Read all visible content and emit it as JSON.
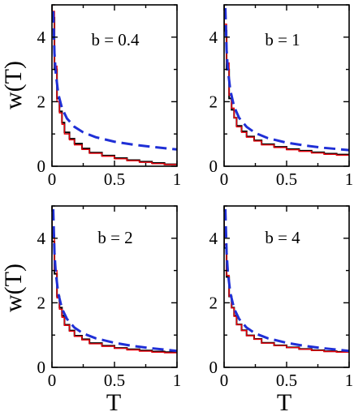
{
  "figure": {
    "ylabel": "w(T)",
    "xlabel": "T",
    "x_ticks": [
      "0",
      "0.5",
      "1"
    ],
    "y_ticks": [
      "0",
      "2",
      "4"
    ]
  },
  "chart_data": [
    {
      "type": "line",
      "annotation": "b = 0.4",
      "xlim": [
        0,
        1
      ],
      "ylim": [
        0,
        5
      ],
      "colors": {
        "histogram_black": "#000000",
        "histogram_red": "#e8000b",
        "dashed_fit": "#1f2fd6"
      },
      "series": [
        {
          "style": "black-step",
          "x": [
            0.02,
            0.04,
            0.06,
            0.08,
            0.1,
            0.14,
            0.18,
            0.24,
            0.3,
            0.4,
            0.5,
            0.6,
            0.7,
            0.8,
            0.9,
            0.98
          ],
          "values": [
            4.6,
            3.0,
            2.1,
            1.7,
            1.35,
            1.05,
            0.85,
            0.7,
            0.55,
            0.42,
            0.33,
            0.25,
            0.19,
            0.14,
            0.1,
            0.06
          ]
        },
        {
          "style": "red-step",
          "x": [
            0.02,
            0.04,
            0.06,
            0.08,
            0.1,
            0.14,
            0.18,
            0.24,
            0.3,
            0.4,
            0.5,
            0.6,
            0.7,
            0.8,
            0.9,
            0.98
          ],
          "values": [
            4.8,
            3.1,
            2.0,
            1.65,
            1.3,
            1.0,
            0.82,
            0.66,
            0.52,
            0.4,
            0.31,
            0.23,
            0.17,
            0.12,
            0.08,
            0.05
          ]
        },
        {
          "style": "blue-dashed",
          "x": [
            0.01,
            0.02,
            0.03,
            0.05,
            0.08,
            0.12,
            0.18,
            0.25,
            0.35,
            0.5,
            0.65,
            0.8,
            1.0
          ],
          "values": [
            4.8,
            3.5,
            2.9,
            2.25,
            1.8,
            1.48,
            1.22,
            1.05,
            0.9,
            0.76,
            0.67,
            0.6,
            0.52
          ]
        }
      ]
    },
    {
      "type": "line",
      "annotation": "b = 1",
      "xlim": [
        0,
        1
      ],
      "ylim": [
        0,
        5
      ],
      "colors": {
        "histogram_black": "#000000",
        "histogram_red": "#e8000b",
        "dashed_fit": "#1f2fd6"
      },
      "series": [
        {
          "style": "black-step",
          "x": [
            0.02,
            0.04,
            0.06,
            0.08,
            0.1,
            0.14,
            0.18,
            0.24,
            0.3,
            0.4,
            0.5,
            0.6,
            0.7,
            0.8,
            0.9,
            0.98
          ],
          "values": [
            4.2,
            3.0,
            2.1,
            1.75,
            1.5,
            1.25,
            1.08,
            0.92,
            0.8,
            0.68,
            0.6,
            0.53,
            0.48,
            0.43,
            0.39,
            0.36
          ]
        },
        {
          "style": "red-step",
          "x": [
            0.02,
            0.04,
            0.06,
            0.08,
            0.1,
            0.14,
            0.18,
            0.24,
            0.3,
            0.4,
            0.5,
            0.6,
            0.7,
            0.8,
            0.9,
            0.98
          ],
          "values": [
            4.4,
            3.2,
            2.2,
            1.8,
            1.5,
            1.22,
            1.05,
            0.9,
            0.78,
            0.66,
            0.58,
            0.51,
            0.46,
            0.41,
            0.37,
            0.34
          ]
        },
        {
          "style": "blue-dashed",
          "x": [
            0.01,
            0.02,
            0.03,
            0.05,
            0.08,
            0.12,
            0.18,
            0.25,
            0.35,
            0.5,
            0.65,
            0.8,
            1.0
          ],
          "values": [
            4.9,
            3.6,
            3.0,
            2.35,
            1.85,
            1.5,
            1.22,
            1.03,
            0.87,
            0.73,
            0.64,
            0.57,
            0.5
          ]
        }
      ]
    },
    {
      "type": "line",
      "annotation": "b = 2",
      "xlim": [
        0,
        1
      ],
      "ylim": [
        0,
        5
      ],
      "colors": {
        "histogram_black": "#000000",
        "histogram_red": "#e8000b",
        "dashed_fit": "#1f2fd6"
      },
      "series": [
        {
          "style": "black-step",
          "x": [
            0.02,
            0.04,
            0.06,
            0.08,
            0.1,
            0.14,
            0.18,
            0.24,
            0.3,
            0.4,
            0.5,
            0.6,
            0.7,
            0.8,
            0.9,
            0.98
          ],
          "values": [
            3.9,
            2.9,
            2.2,
            1.85,
            1.6,
            1.32,
            1.14,
            0.98,
            0.87,
            0.75,
            0.67,
            0.6,
            0.56,
            0.52,
            0.49,
            0.47
          ]
        },
        {
          "style": "red-step",
          "x": [
            0.02,
            0.04,
            0.06,
            0.08,
            0.1,
            0.14,
            0.18,
            0.24,
            0.3,
            0.4,
            0.5,
            0.6,
            0.7,
            0.8,
            0.9,
            0.98
          ],
          "values": [
            4.1,
            3.0,
            2.15,
            1.8,
            1.55,
            1.3,
            1.12,
            0.96,
            0.85,
            0.73,
            0.65,
            0.59,
            0.54,
            0.5,
            0.47,
            0.45
          ]
        },
        {
          "style": "blue-dashed",
          "x": [
            0.01,
            0.02,
            0.03,
            0.05,
            0.08,
            0.12,
            0.18,
            0.25,
            0.35,
            0.5,
            0.65,
            0.8,
            1.0
          ],
          "values": [
            4.9,
            3.55,
            2.95,
            2.3,
            1.82,
            1.5,
            1.23,
            1.05,
            0.9,
            0.76,
            0.66,
            0.59,
            0.51
          ]
        }
      ]
    },
    {
      "type": "line",
      "annotation": "b = 4",
      "xlim": [
        0,
        1
      ],
      "ylim": [
        0,
        5
      ],
      "colors": {
        "histogram_black": "#000000",
        "histogram_red": "#e8000b",
        "dashed_fit": "#1f2fd6"
      },
      "series": [
        {
          "style": "black-step",
          "x": [
            0.02,
            0.04,
            0.06,
            0.08,
            0.1,
            0.14,
            0.18,
            0.24,
            0.3,
            0.4,
            0.5,
            0.6,
            0.7,
            0.8,
            0.9,
            0.98
          ],
          "values": [
            3.7,
            2.8,
            2.2,
            1.85,
            1.6,
            1.33,
            1.15,
            0.99,
            0.88,
            0.76,
            0.68,
            0.62,
            0.57,
            0.53,
            0.5,
            0.48
          ]
        },
        {
          "style": "red-step",
          "x": [
            0.02,
            0.04,
            0.06,
            0.08,
            0.1,
            0.14,
            0.18,
            0.24,
            0.3,
            0.4,
            0.5,
            0.6,
            0.7,
            0.8,
            0.9,
            0.98
          ],
          "values": [
            3.8,
            2.85,
            2.2,
            1.84,
            1.58,
            1.32,
            1.14,
            0.98,
            0.87,
            0.75,
            0.67,
            0.61,
            0.56,
            0.52,
            0.49,
            0.47
          ]
        },
        {
          "style": "blue-dashed",
          "x": [
            0.01,
            0.02,
            0.03,
            0.05,
            0.08,
            0.12,
            0.18,
            0.25,
            0.35,
            0.5,
            0.65,
            0.8,
            1.0
          ],
          "values": [
            4.9,
            3.55,
            2.95,
            2.3,
            1.82,
            1.5,
            1.23,
            1.05,
            0.9,
            0.76,
            0.66,
            0.59,
            0.51
          ]
        }
      ]
    }
  ]
}
